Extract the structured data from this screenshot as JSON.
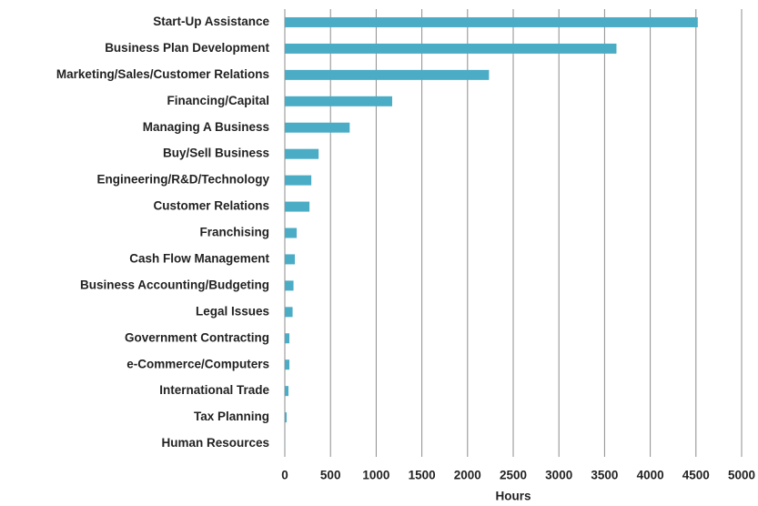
{
  "chart_data": {
    "type": "barh",
    "categories": [
      "Start-Up Assistance",
      "Business Plan Development",
      "Marketing/Sales/Customer Relations",
      "Financing/Capital",
      "Managing A Business",
      "Buy/Sell Business",
      "Engineering/R&D/Technology",
      "Customer Relations",
      "Franchising",
      "Cash Flow Management",
      "Business Accounting/Budgeting",
      "Legal Issues",
      "Government Contracting",
      "e-Commerce/Computers",
      "International Trade",
      "Tax Planning",
      "Human Resources"
    ],
    "values": [
      4520,
      3630,
      2235,
      1175,
      710,
      370,
      290,
      270,
      130,
      110,
      95,
      85,
      50,
      50,
      40,
      20,
      5
    ],
    "color": "#4bacc6",
    "xlabel": "Hours",
    "xlim": [
      0,
      5000
    ],
    "xticks": [
      0,
      500,
      1000,
      1500,
      2000,
      2500,
      3000,
      3500,
      4000,
      4500,
      5000
    ],
    "grid": true
  }
}
